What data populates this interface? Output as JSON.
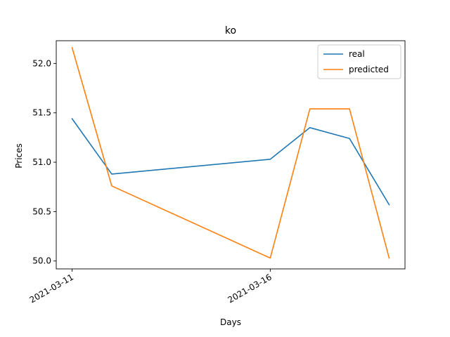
{
  "chart_data": {
    "type": "line",
    "title": "ko",
    "xlabel": "Days",
    "ylabel": "Prices",
    "x": [
      "2021-03-11",
      "2021-03-12",
      "2021-03-16",
      "2021-03-17",
      "2021-03-18",
      "2021-03-19"
    ],
    "x_tick_labels": [
      "2021-03-11",
      "2021-03-16"
    ],
    "y_ticks": [
      50.0,
      50.5,
      51.0,
      51.5,
      52.0
    ],
    "y_tick_labels": [
      "50.0",
      "50.5",
      "51.0",
      "51.5",
      "52.0"
    ],
    "ylim": [
      49.92,
      52.23
    ],
    "grid": false,
    "legend_position": "top-right",
    "series": [
      {
        "name": "real",
        "color": "#1f77b4",
        "values": [
          51.44,
          50.88,
          51.03,
          51.35,
          51.24,
          50.57
        ]
      },
      {
        "name": "predicted",
        "color": "#ff7f0e",
        "values": [
          52.16,
          50.76,
          50.03,
          51.54,
          51.54,
          50.03
        ]
      }
    ]
  }
}
